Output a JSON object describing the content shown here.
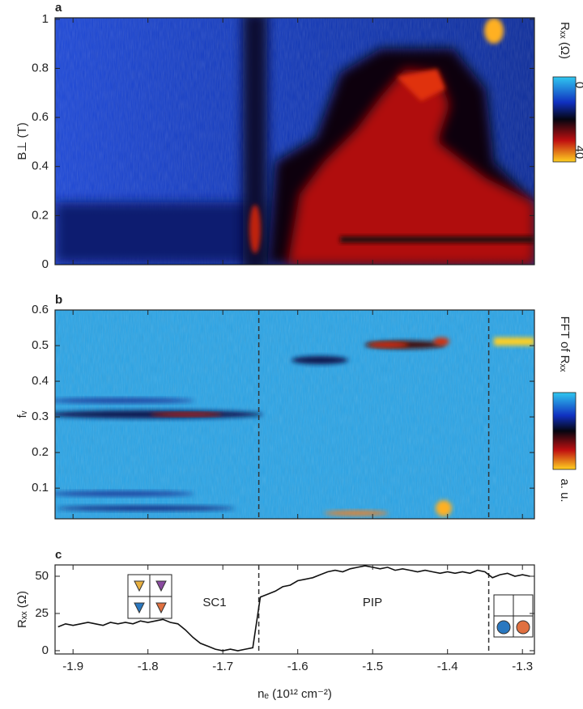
{
  "chart_data": [
    {
      "type": "heatmap",
      "label": "a",
      "ylabel": "B⊥ (T)",
      "ylim": [
        0,
        1.006
      ],
      "yticks": [
        0,
        0.2,
        0.4,
        0.6,
        0.8,
        1
      ],
      "colorbar": {
        "label": "Rₓₓ (Ω)",
        "ticks": [
          0,
          40
        ]
      }
    },
    {
      "type": "heatmap",
      "label": "b",
      "ylabel": "fᵥ",
      "ylim": [
        0.014,
        0.6
      ],
      "yticks": [
        0.1,
        0.2,
        0.3,
        0.4,
        0.5,
        0.6
      ],
      "colorbar": {
        "label": "FFT of Rₓₓ",
        "unit": "a. u."
      },
      "vlines": [
        -1.652,
        -1.345
      ]
    },
    {
      "type": "line",
      "label": "c",
      "ylabel": "Rₓₓ (Ω)",
      "xlabel": "nₑ (10¹² cm⁻²)",
      "xlim": [
        -1.924,
        -1.284
      ],
      "xticks": [
        -1.9,
        -1.8,
        -1.7,
        -1.6,
        -1.5,
        -1.4,
        -1.3
      ],
      "ylim": [
        -2.2,
        57.6
      ],
      "yticks": [
        0,
        25,
        50
      ],
      "vlines": [
        -1.652,
        -1.345
      ],
      "annotations": [
        "SC1",
        "PIP"
      ],
      "series": [
        {
          "color": "#111111",
          "x": [
            -1.92,
            -1.91,
            -1.9,
            -1.89,
            -1.88,
            -1.87,
            -1.86,
            -1.85,
            -1.84,
            -1.83,
            -1.82,
            -1.81,
            -1.8,
            -1.79,
            -1.78,
            -1.77,
            -1.76,
            -1.75,
            -1.74,
            -1.73,
            -1.72,
            -1.71,
            -1.7,
            -1.69,
            -1.68,
            -1.67,
            -1.66,
            -1.65,
            -1.64,
            -1.63,
            -1.62,
            -1.61,
            -1.6,
            -1.59,
            -1.58,
            -1.57,
            -1.56,
            -1.55,
            -1.54,
            -1.53,
            -1.52,
            -1.51,
            -1.5,
            -1.49,
            -1.48,
            -1.47,
            -1.46,
            -1.45,
            -1.44,
            -1.43,
            -1.42,
            -1.41,
            -1.4,
            -1.39,
            -1.38,
            -1.37,
            -1.36,
            -1.35,
            -1.34,
            -1.33,
            -1.32,
            -1.31,
            -1.3,
            -1.29
          ],
          "values": [
            16,
            18,
            17,
            18,
            19,
            18,
            17,
            19,
            18,
            19,
            18,
            20,
            19,
            20,
            21,
            19,
            18,
            14,
            9,
            5,
            3,
            1,
            0,
            1,
            0,
            1,
            2,
            36,
            38,
            40,
            43,
            44,
            47,
            48,
            49,
            51,
            53,
            54,
            53,
            55,
            56,
            57,
            56,
            55,
            56,
            54,
            55,
            54,
            53,
            54,
            53,
            52,
            53,
            52,
            53,
            52,
            54,
            53,
            49,
            51,
            52,
            50,
            51,
            50
          ]
        }
      ]
    }
  ]
}
